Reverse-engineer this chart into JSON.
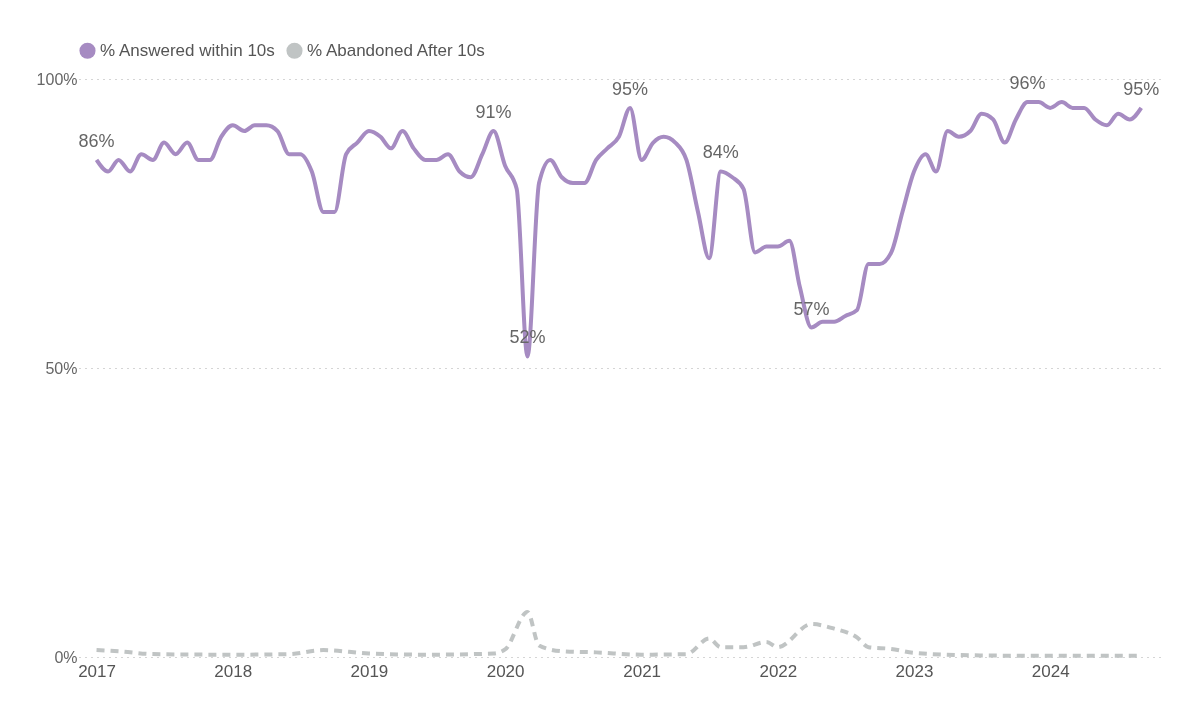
{
  "chart_data": {
    "type": "line",
    "x": [
      "2017-01",
      "2017-02",
      "2017-03",
      "2017-04",
      "2017-05",
      "2017-06",
      "2017-07",
      "2017-08",
      "2017-09",
      "2017-10",
      "2017-11",
      "2017-12",
      "2018-01",
      "2018-02",
      "2018-03",
      "2018-04",
      "2018-05",
      "2018-06",
      "2018-07",
      "2018-08",
      "2018-09",
      "2018-10",
      "2018-11",
      "2018-12",
      "2019-01",
      "2019-02",
      "2019-03",
      "2019-04",
      "2019-05",
      "2019-06",
      "2019-07",
      "2019-08",
      "2019-09",
      "2019-10",
      "2019-11",
      "2019-12",
      "2020-01",
      "2020-02",
      "2020-03",
      "2020-04",
      "2020-05",
      "2020-06",
      "2020-07",
      "2020-08",
      "2020-09",
      "2020-10",
      "2020-11",
      "2020-12",
      "2021-01",
      "2021-02",
      "2021-03",
      "2021-04",
      "2021-05",
      "2021-06",
      "2021-07",
      "2021-08",
      "2021-09",
      "2021-10",
      "2021-11",
      "2021-12",
      "2022-01",
      "2022-02",
      "2022-03",
      "2022-04",
      "2022-05",
      "2022-06",
      "2022-07",
      "2022-08",
      "2022-09",
      "2022-10",
      "2022-11",
      "2022-12",
      "2023-01",
      "2023-02",
      "2023-03",
      "2023-04",
      "2023-05",
      "2023-06",
      "2023-07",
      "2023-08",
      "2023-09",
      "2023-10",
      "2023-11",
      "2023-12",
      "2024-01",
      "2024-02",
      "2024-03",
      "2024-04",
      "2024-05",
      "2024-06",
      "2024-07",
      "2024-08",
      "2024-09"
    ],
    "series": [
      {
        "name": "% Answered within 10s",
        "color": "#a68bc2",
        "line_style": "solid",
        "values": [
          86,
          84,
          86,
          84,
          87,
          86,
          89,
          87,
          89,
          86,
          86,
          90,
          92,
          91,
          92,
          92,
          91,
          87,
          87,
          84,
          77,
          77,
          87,
          89,
          91,
          90,
          88,
          91,
          88,
          86,
          86,
          87,
          84,
          83,
          87,
          91,
          85,
          81,
          52,
          82,
          86,
          83,
          82,
          82,
          86,
          88,
          90,
          95,
          86,
          89,
          90,
          89,
          86,
          77,
          69,
          84,
          83,
          81,
          70,
          71,
          71,
          72,
          64,
          57,
          58,
          58,
          59,
          60,
          68,
          68,
          70,
          77,
          84,
          87,
          84,
          91,
          90,
          91,
          94,
          93,
          89,
          93,
          96,
          96,
          95,
          96,
          95,
          95,
          93,
          92,
          94,
          93,
          95
        ],
        "value_labels": [
          "86%",
          null,
          null,
          null,
          null,
          null,
          null,
          null,
          null,
          null,
          null,
          null,
          null,
          null,
          null,
          null,
          null,
          null,
          null,
          null,
          null,
          null,
          null,
          null,
          null,
          null,
          null,
          null,
          null,
          null,
          null,
          null,
          null,
          null,
          null,
          "91%",
          null,
          null,
          "52%",
          null,
          null,
          null,
          null,
          null,
          null,
          null,
          null,
          "95%",
          null,
          null,
          null,
          null,
          null,
          null,
          null,
          "84%",
          null,
          null,
          null,
          null,
          null,
          null,
          null,
          "57%",
          null,
          null,
          null,
          null,
          null,
          null,
          null,
          null,
          null,
          null,
          null,
          null,
          null,
          null,
          null,
          null,
          null,
          null,
          "96%",
          null,
          null,
          null,
          null,
          null,
          null,
          null,
          null,
          null,
          "95%"
        ]
      },
      {
        "name": "% Abandoned After 10s",
        "color": "#c0c4c4",
        "line_style": "dashed",
        "x": [
          "2017-01",
          "2017-03",
          "2017-06",
          "2018-01",
          "2018-06",
          "2018-09",
          "2019-01",
          "2019-06",
          "2019-12",
          "2020-01",
          "2020-03",
          "2020-04",
          "2020-06",
          "2020-09",
          "2021-01",
          "2021-05",
          "2021-07",
          "2021-08",
          "2021-10",
          "2021-12",
          "2022-01",
          "2022-04",
          "2022-06",
          "2022-08",
          "2022-09",
          "2022-11",
          "2023-01",
          "2023-06",
          "2024-01",
          "2024-09"
        ],
        "values": [
          1.2,
          1.0,
          0.5,
          0.4,
          0.5,
          1.2,
          0.6,
          0.4,
          0.6,
          1.3,
          7.8,
          2.0,
          1.0,
          0.8,
          0.4,
          0.5,
          3.2,
          1.7,
          1.7,
          2.6,
          1.7,
          5.7,
          4.9,
          3.4,
          1.7,
          1.4,
          0.7,
          0.3,
          0.2,
          0.2
        ]
      }
    ],
    "xlim": [
      "2016-11-15",
      "2024-11-01"
    ],
    "xticks": [
      "2017",
      "2018",
      "2019",
      "2020",
      "2021",
      "2022",
      "2023",
      "2024"
    ],
    "ylim": [
      0,
      100
    ],
    "yticks": [
      {
        "value": 0,
        "label": "0%"
      },
      {
        "value": 50,
        "label": "50%"
      },
      {
        "value": 100,
        "label": "100%"
      }
    ],
    "grid": "y",
    "legend": "top left"
  }
}
